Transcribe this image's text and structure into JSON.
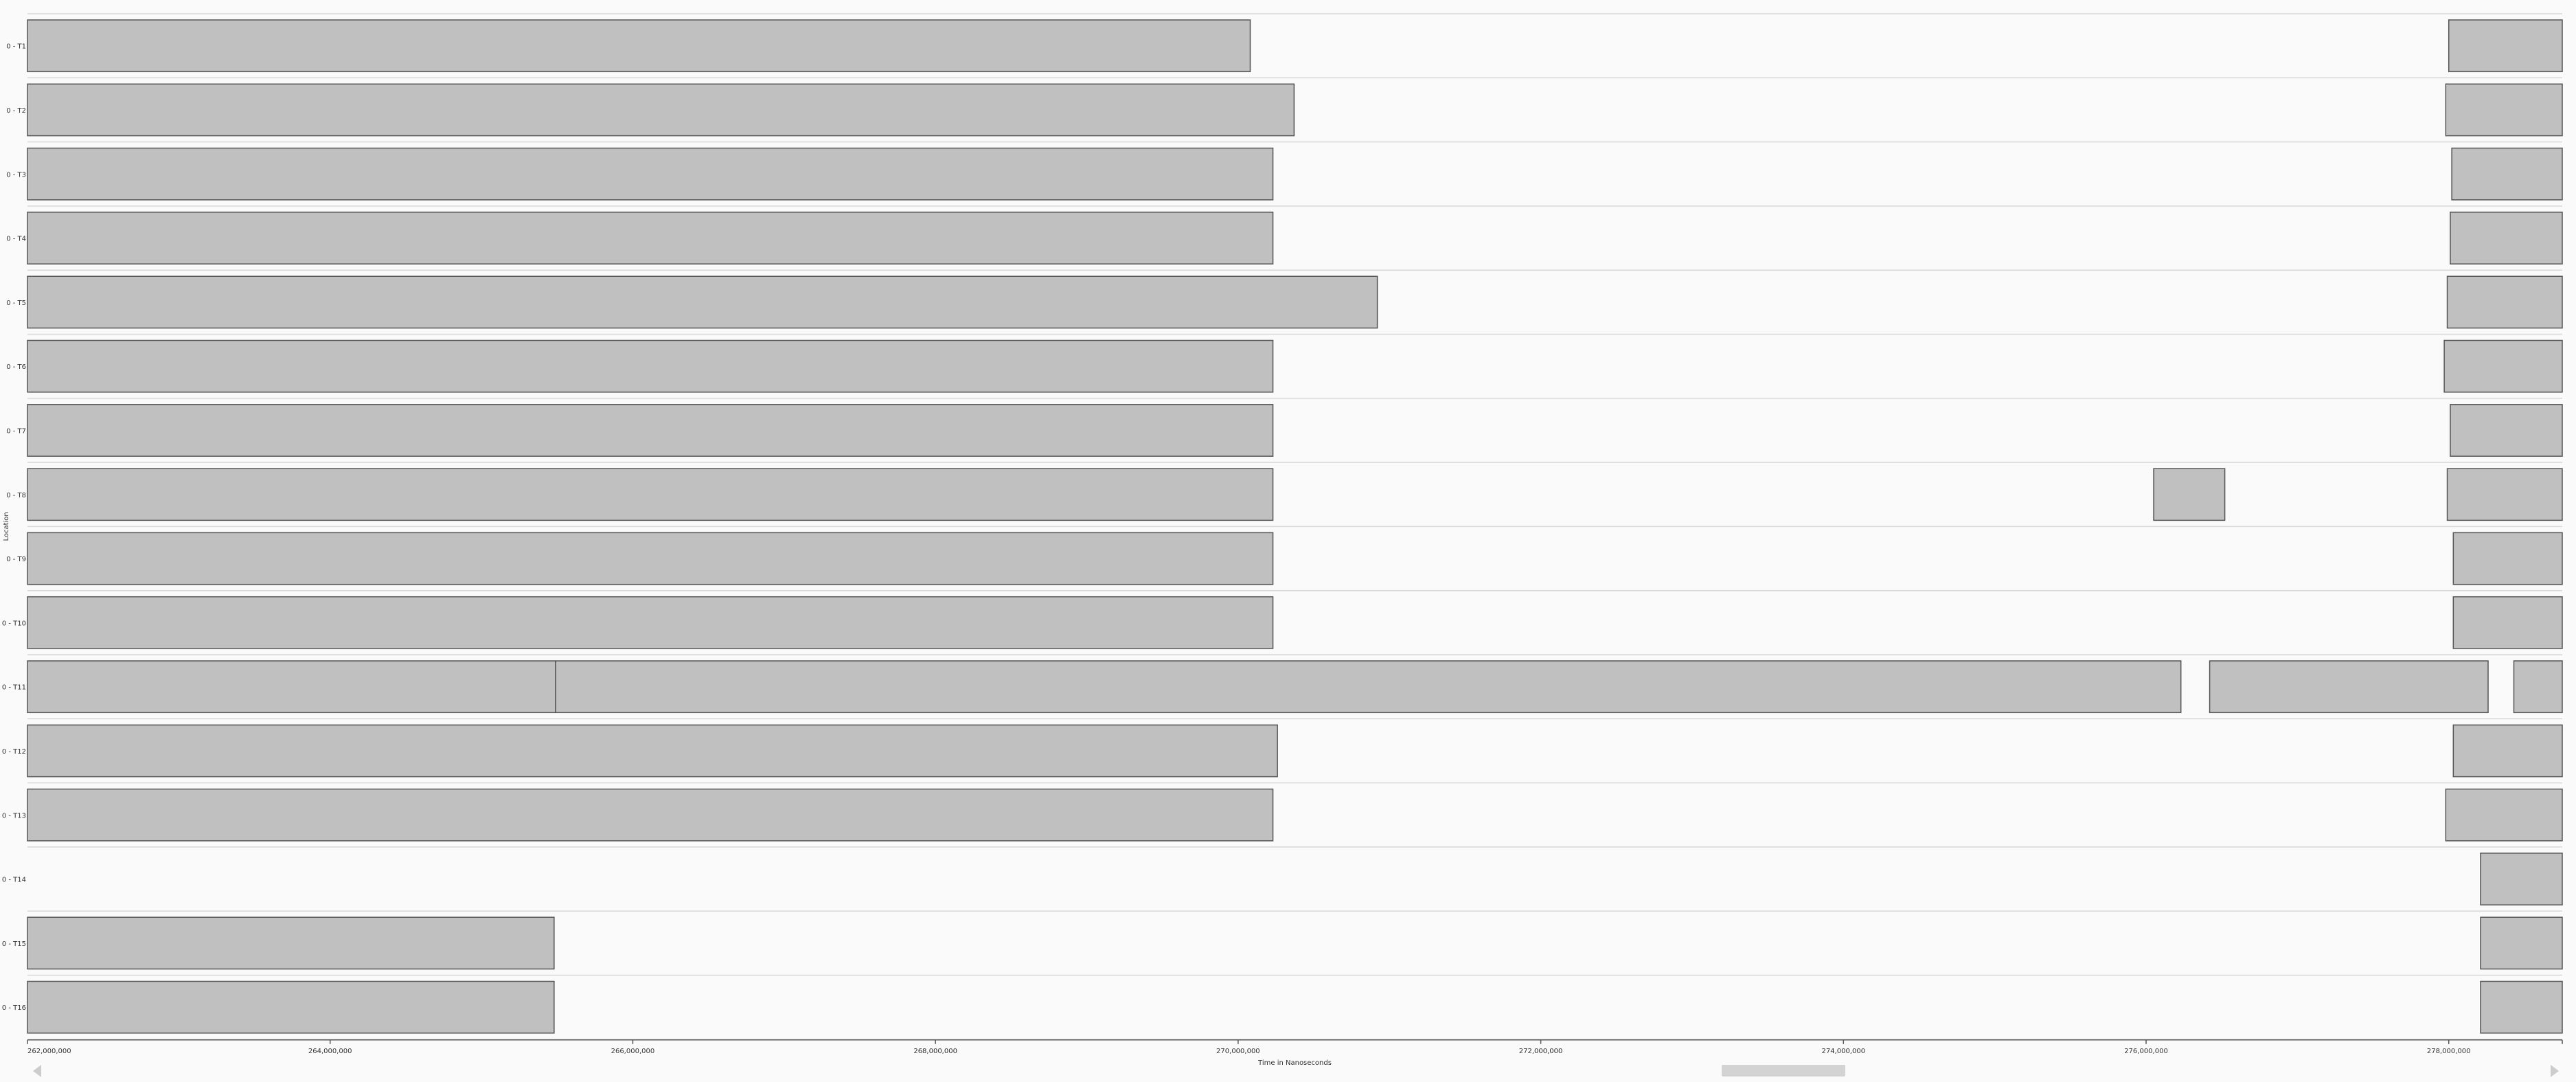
{
  "chart_data": {
    "type": "gantt",
    "xlabel": "Time in Nanoseconds",
    "ylabel": "Location",
    "xlim": [
      262000000,
      278750000
    ],
    "xticks": [
      262000000,
      264000000,
      266000000,
      268000000,
      270000000,
      272000000,
      274000000,
      276000000,
      278000000
    ],
    "xtick_labels": [
      "262,000,000",
      "264,000,000",
      "266,000,000",
      "268,000,000",
      "270,000,000",
      "272,000,000",
      "274,000,000",
      "276,000,000",
      "278,000,000"
    ],
    "categories": [
      "0 - T1",
      "0 - T2",
      "0 - T3",
      "0 - T4",
      "0 - T5",
      "0 - T6",
      "0 - T7",
      "0 - T8",
      "0 - T9",
      "0 - T10",
      "0 - T11",
      "0 - T12",
      "0 - T13",
      "0 - T14",
      "0 - T15",
      "0 - T16"
    ],
    "bar_color": "#c0c0c0",
    "series": [
      {
        "row": "0 - T1",
        "intervals": [
          [
            262000000,
            270080000
          ],
          [
            278000000,
            278750000
          ]
        ]
      },
      {
        "row": "0 - T2",
        "intervals": [
          [
            262000000,
            270370000
          ],
          [
            277980000,
            278750000
          ]
        ]
      },
      {
        "row": "0 - T3",
        "intervals": [
          [
            262000000,
            270230000
          ],
          [
            278020000,
            278750000
          ]
        ]
      },
      {
        "row": "0 - T4",
        "intervals": [
          [
            262000000,
            270230000
          ],
          [
            278010000,
            278750000
          ]
        ]
      },
      {
        "row": "0 - T5",
        "intervals": [
          [
            262000000,
            270920000
          ],
          [
            277990000,
            278750000
          ]
        ]
      },
      {
        "row": "0 - T6",
        "intervals": [
          [
            262000000,
            270230000
          ],
          [
            277970000,
            278750000
          ]
        ]
      },
      {
        "row": "0 - T7",
        "intervals": [
          [
            262000000,
            270230000
          ],
          [
            278010000,
            278750000
          ]
        ]
      },
      {
        "row": "0 - T8",
        "intervals": [
          [
            262000000,
            270230000
          ],
          [
            276050000,
            276520000
          ],
          [
            277990000,
            278750000
          ]
        ]
      },
      {
        "row": "0 - T9",
        "intervals": [
          [
            262000000,
            270230000
          ],
          [
            278030000,
            278750000
          ]
        ]
      },
      {
        "row": "0 - T10",
        "intervals": [
          [
            262000000,
            270230000
          ],
          [
            278030000,
            278750000
          ]
        ]
      },
      {
        "row": "0 - T11",
        "intervals": [
          [
            262000000,
            265490000
          ],
          [
            265490000,
            276230000
          ],
          [
            276420000,
            278260000
          ],
          [
            278430000,
            278750000
          ]
        ]
      },
      {
        "row": "0 - T12",
        "intervals": [
          [
            262000000,
            270260000
          ],
          [
            278030000,
            278750000
          ]
        ]
      },
      {
        "row": "0 - T13",
        "intervals": [
          [
            262000000,
            270230000
          ],
          [
            277980000,
            278750000
          ]
        ]
      },
      {
        "row": "0 - T14",
        "intervals": [
          [
            278210000,
            278750000
          ]
        ]
      },
      {
        "row": "0 - T15",
        "intervals": [
          [
            262000000,
            265480000
          ],
          [
            278210000,
            278750000
          ]
        ]
      },
      {
        "row": "0 - T16",
        "intervals": [
          [
            262000000,
            265480000
          ],
          [
            278210000,
            278750000
          ]
        ]
      }
    ]
  }
}
